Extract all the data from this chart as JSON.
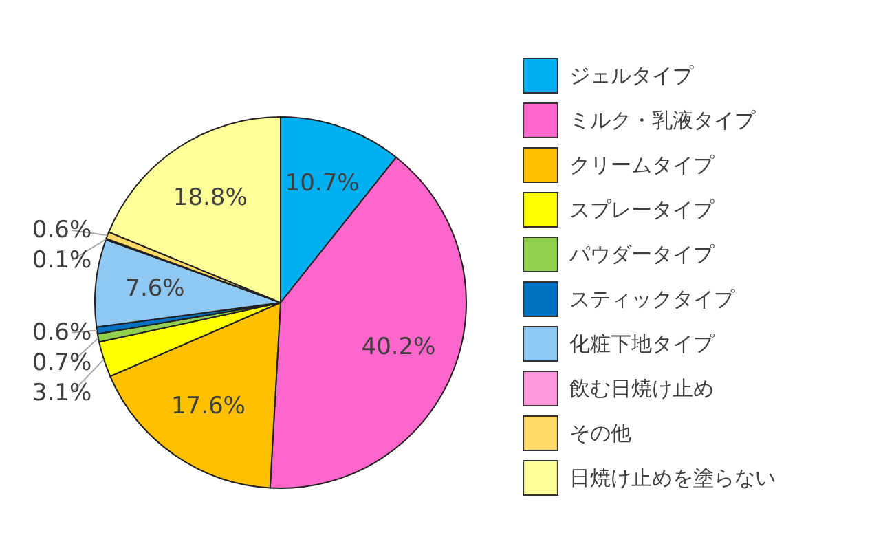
{
  "chart_data": {
    "type": "pie",
    "categories": [
      "ジェルタイプ",
      "ミルク・乳液タイプ",
      "クリームタイプ",
      "スプレータイプ",
      "パウダータイプ",
      "スティックタイプ",
      "化粧下地タイプ",
      "飲む日焼け止め",
      "その他",
      "日焼け止めを塗らない"
    ],
    "values": [
      10.7,
      40.2,
      17.6,
      3.1,
      0.7,
      0.6,
      7.6,
      0.1,
      0.6,
      18.8
    ],
    "value_labels": [
      "10.7%",
      "40.2%",
      "17.6%",
      "3.1%",
      "0.7%",
      "0.6%",
      "7.6%",
      "0.1%",
      "0.6%",
      "18.8%"
    ],
    "colors": [
      "#00b0f0",
      "#ff66cc",
      "#ffc000",
      "#ffff00",
      "#92d050",
      "#0070c0",
      "#8fc8f2",
      "#ff99dd",
      "#ffd966",
      "#ffff99"
    ],
    "legend": "right"
  }
}
